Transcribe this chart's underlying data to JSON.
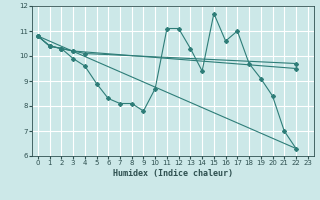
{
  "xlabel": "Humidex (Indice chaleur)",
  "bg_color": "#cce8e8",
  "grid_color": "#ffffff",
  "line_color": "#2e7d78",
  "xlim": [
    -0.5,
    23.5
  ],
  "ylim": [
    6,
    12
  ],
  "xticks": [
    0,
    1,
    2,
    3,
    4,
    5,
    6,
    7,
    8,
    9,
    10,
    11,
    12,
    13,
    14,
    15,
    16,
    17,
    18,
    19,
    20,
    21,
    22,
    23
  ],
  "yticks": [
    6,
    7,
    8,
    9,
    10,
    11,
    12
  ],
  "series": [
    {
      "x": [
        0,
        1,
        2,
        3,
        4,
        5,
        6,
        7,
        8,
        9,
        10,
        11,
        12,
        13,
        14,
        15,
        16,
        17,
        18,
        19,
        20,
        21,
        22
      ],
      "y": [
        10.8,
        10.4,
        10.3,
        9.9,
        9.6,
        8.9,
        8.3,
        8.1,
        8.1,
        7.8,
        8.7,
        11.1,
        11.1,
        10.3,
        9.4,
        11.7,
        10.6,
        11.0,
        9.7,
        9.1,
        8.4,
        7.0,
        6.3
      ]
    },
    {
      "x": [
        0,
        1,
        2,
        3,
        4,
        22
      ],
      "y": [
        10.8,
        10.4,
        10.3,
        10.2,
        10.1,
        9.7
      ]
    },
    {
      "x": [
        0,
        1,
        2,
        3,
        22
      ],
      "y": [
        10.8,
        10.4,
        10.3,
        10.2,
        9.5
      ]
    },
    {
      "x": [
        0,
        22
      ],
      "y": [
        10.8,
        6.3
      ]
    }
  ]
}
